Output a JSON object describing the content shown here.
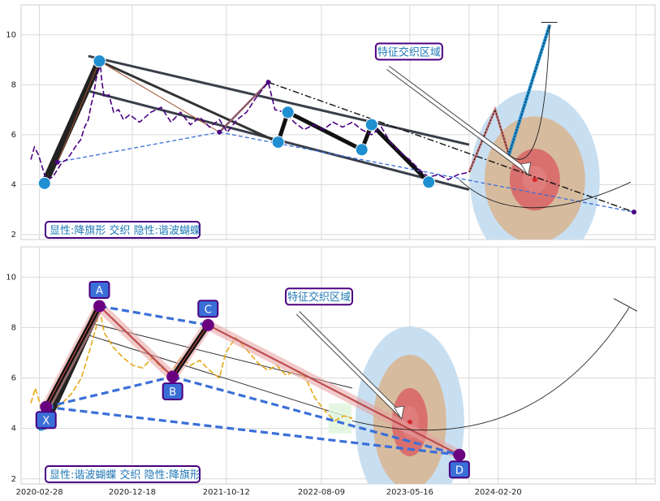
{
  "colors": {
    "price_top": "#4b0082",
    "price_bottom": "#e6a817",
    "zone_outer": "#c5ddf0",
    "zone_mid": "#d8b89a",
    "zone_inner": "#d96b6b",
    "point_blue": "#1f8fd1",
    "box_border": "#4b0082",
    "label_fill": "#3a6fd8"
  },
  "chart_data": [
    {
      "type": "line",
      "x_range": [
        "2020-01-01",
        "2025-07-01"
      ],
      "ylim": [
        1.8,
        11.2
      ],
      "yticks": [
        2,
        4,
        6,
        8,
        10
      ],
      "grid": true,
      "price_series": [
        [
          "2020-02-01",
          5.0
        ],
        [
          "2020-02-12",
          5.5
        ],
        [
          "2020-02-25",
          5.2
        ],
        [
          "2020-03-20",
          4.2
        ],
        [
          "2020-04-10",
          4.3
        ],
        [
          "2020-04-25",
          4.6
        ],
        [
          "2020-05-10",
          4.9
        ],
        [
          "2020-05-25",
          5.0
        ],
        [
          "2020-06-10",
          5.3
        ],
        [
          "2020-06-25",
          5.6
        ],
        [
          "2020-07-08",
          5.8
        ],
        [
          "2020-07-20",
          6.3
        ],
        [
          "2020-08-01",
          6.6
        ],
        [
          "2020-08-10",
          7.2
        ],
        [
          "2020-08-18",
          7.6
        ],
        [
          "2020-08-25",
          8.2
        ],
        [
          "2020-09-02",
          8.6
        ],
        [
          "2020-09-08",
          8.9
        ],
        [
          "2020-09-12",
          8.2
        ],
        [
          "2020-09-20",
          7.5
        ],
        [
          "2020-10-05",
          7.6
        ],
        [
          "2020-10-20",
          6.9
        ],
        [
          "2020-11-05",
          7.0
        ],
        [
          "2020-11-20",
          6.6
        ],
        [
          "2020-12-10",
          6.8
        ],
        [
          "2021-01-10",
          6.5
        ],
        [
          "2021-02-15",
          6.9
        ],
        [
          "2021-03-20",
          7.1
        ],
        [
          "2021-04-20",
          6.5
        ],
        [
          "2021-05-20",
          6.9
        ],
        [
          "2021-06-20",
          6.4
        ],
        [
          "2021-07-20",
          6.7
        ],
        [
          "2021-08-20",
          6.3
        ],
        [
          "2021-09-20",
          6.6
        ],
        [
          "2021-10-15",
          6.1
        ],
        [
          "2021-11-15",
          6.6
        ],
        [
          "2021-12-15",
          6.9
        ],
        [
          "2022-01-15",
          7.5
        ],
        [
          "2022-02-15",
          8.0
        ],
        [
          "2022-02-22",
          8.1
        ],
        [
          "2022-03-15",
          7.0
        ],
        [
          "2022-04-15",
          6.9
        ],
        [
          "2022-05-15",
          6.5
        ],
        [
          "2022-06-15",
          6.2
        ],
        [
          "2022-07-15",
          6.4
        ],
        [
          "2022-08-15",
          6.2
        ],
        [
          "2022-09-15",
          6.5
        ],
        [
          "2022-10-15",
          6.3
        ],
        [
          "2022-11-15",
          6.5
        ],
        [
          "2022-12-15",
          6.2
        ],
        [
          "2023-01-15",
          6.0
        ],
        [
          "2023-02-15",
          6.3
        ],
        [
          "2023-03-15",
          5.7
        ],
        [
          "2023-04-15",
          5.3
        ],
        [
          "2023-05-15",
          5.0
        ],
        [
          "2023-06-15",
          4.6
        ],
        [
          "2023-07-15",
          4.3
        ],
        [
          "2023-08-15",
          4.4
        ],
        [
          "2023-09-15",
          4.2
        ],
        [
          "2023-10-15",
          4.4
        ],
        [
          "2023-11-20",
          4.5
        ]
      ],
      "pattern_points": [
        [
          "2020-03-15",
          4.05
        ],
        [
          "2020-09-05",
          8.95
        ],
        [
          "2022-03-25",
          5.7
        ],
        [
          "2022-04-25",
          6.9
        ],
        [
          "2022-12-15",
          5.4
        ],
        [
          "2023-01-15",
          6.4
        ],
        [
          "2023-07-15",
          4.1
        ]
      ],
      "projection_path": [
        [
          "2023-11-20",
          4.5
        ],
        [
          "2024-02-10",
          7.0
        ],
        [
          "2024-03-25",
          5.2
        ],
        [
          "2024-08-01",
          10.4
        ]
      ],
      "labels": {
        "zone_label": "特征交织区域",
        "summary": "显性:降旗形 交织 隐性:谐波蝴蝶"
      }
    },
    {
      "type": "line",
      "x_range": [
        "2020-01-01",
        "2025-07-01"
      ],
      "ylim": [
        1.8,
        11.2
      ],
      "yticks": [
        2,
        4,
        6,
        8,
        10
      ],
      "xticks": [
        "2020-02-28",
        "2020-12-18",
        "2021-10-12",
        "2022-08-09",
        "2023-05-16",
        "2024-02-20"
      ],
      "grid": true,
      "price_series": [
        [
          "2020-02-01",
          5.0
        ],
        [
          "2020-02-15",
          5.6
        ],
        [
          "2020-03-10",
          4.6
        ],
        [
          "2020-04-10",
          4.7
        ],
        [
          "2020-05-10",
          5.0
        ],
        [
          "2020-06-10",
          5.4
        ],
        [
          "2020-07-10",
          6.0
        ],
        [
          "2020-08-10",
          7.3
        ],
        [
          "2020-08-25",
          8.0
        ],
        [
          "2020-09-05",
          8.8
        ],
        [
          "2020-09-20",
          7.8
        ],
        [
          "2020-10-20",
          7.2
        ],
        [
          "2020-11-20",
          6.8
        ],
        [
          "2020-12-20",
          6.5
        ],
        [
          "2021-01-20",
          6.4
        ],
        [
          "2021-02-20",
          6.8
        ],
        [
          "2021-03-20",
          6.4
        ],
        [
          "2021-04-20",
          6.2
        ],
        [
          "2021-05-20",
          6.8
        ],
        [
          "2021-06-20",
          6.5
        ],
        [
          "2021-07-20",
          6.7
        ],
        [
          "2021-08-20",
          6.3
        ],
        [
          "2021-09-20",
          6.0
        ],
        [
          "2021-10-10",
          7.0
        ],
        [
          "2021-11-10",
          7.6
        ],
        [
          "2021-12-10",
          7.2
        ],
        [
          "2022-01-20",
          6.6
        ],
        [
          "2022-02-20",
          6.3
        ],
        [
          "2022-03-20",
          6.5
        ],
        [
          "2022-04-20",
          6.1
        ],
        [
          "2022-05-20",
          6.3
        ],
        [
          "2022-06-20",
          6.0
        ],
        [
          "2022-07-20",
          5.2
        ],
        [
          "2022-08-20",
          4.7
        ],
        [
          "2022-09-20",
          4.3
        ],
        [
          "2022-10-20",
          4.5
        ],
        [
          "2022-11-15",
          4.4
        ]
      ],
      "pattern_points": {
        "X": [
          "2020-03-20",
          4.85
        ],
        "A": [
          "2020-09-05",
          8.85
        ],
        "B": [
          "2021-04-25",
          6.05
        ],
        "C": [
          "2021-08-15",
          8.1
        ],
        "D": [
          "2023-10-20",
          2.95
        ]
      },
      "point_labels": [
        "X",
        "A",
        "B",
        "C",
        "D"
      ],
      "labels": {
        "zone_label": "特征交织区域",
        "summary": "显性:谐波蝴蝶 交织 隐性:降旗形"
      }
    }
  ]
}
